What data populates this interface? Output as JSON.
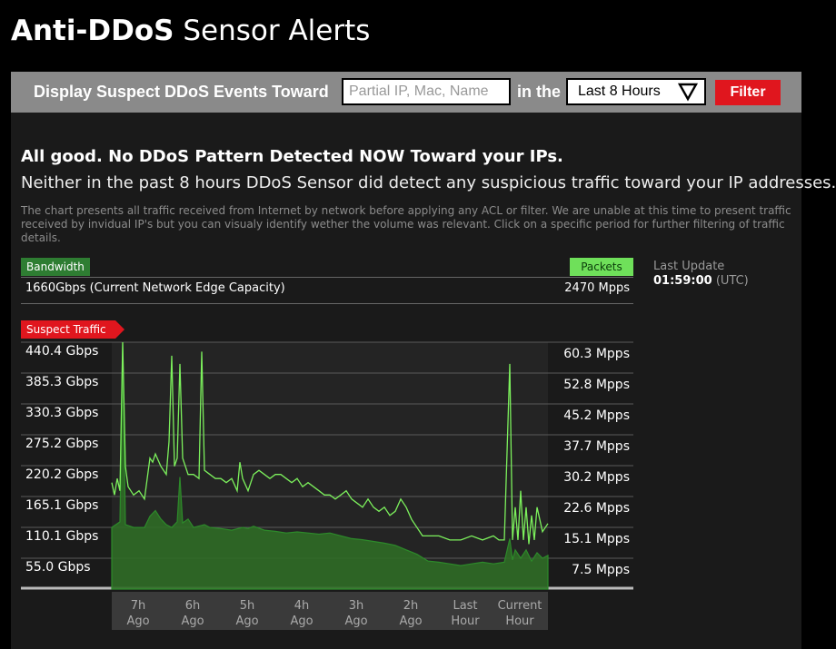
{
  "page": {
    "title_bold": "Anti-DDoS",
    "title_light": "Sensor Alerts"
  },
  "filter": {
    "label": "Display Suspect DDoS Events Toward",
    "input_placeholder": "Partial IP, Mac, Name",
    "input_value": "",
    "in_the": "in the",
    "period_selected": "Last 8 Hours",
    "button_label": "Filter"
  },
  "status": {
    "headline": "All good. No DDoS Pattern Detected NOW Toward your IPs.",
    "subline": "Neither in the past 8 hours DDoS Sensor did detect any suspicious traffic toward your IP addresses.",
    "description": "The chart presents all traffic received from Internet by network before applying any ACL or filter. We are unable at this time to present traffic received by invidual IP's but you can visualy identify wether the volume was relevant. Click on a specific period for further filtering of traffic details."
  },
  "capacity": {
    "bandwidth_label": "Bandwidth",
    "packets_label": "Packets",
    "bandwidth_value": "1660Gbps (Current Network Edge Capacity)",
    "packets_value": "2470 Mpps"
  },
  "last_update": {
    "label": "Last Update",
    "time": "01:59:00",
    "tz": "(UTC)"
  },
  "colors": {
    "packets_line": "#7cf05c",
    "bandwidth_area": "#2f6b26",
    "bandwidth_line": "#2d8a2a",
    "alert_red": "#e0161e",
    "filter_bar": "#8a8a8a"
  },
  "chart_data": {
    "type": "area",
    "suspect_label": "Suspect Traffic",
    "y_left_ticks": [
      "440.4 Gbps",
      "385.3 Gbps",
      "330.3 Gbps",
      "275.2 Gbps",
      "220.2 Gbps",
      "165.1 Gbps",
      "110.1 Gbps",
      "55.0 Gbps"
    ],
    "y_right_ticks": [
      "60.3 Mpps",
      "52.8 Mpps",
      "45.2 Mpps",
      "37.7 Mpps",
      "30.2 Mpps",
      "22.6 Mpps",
      "15.1 Mpps",
      "7.5 Mpps"
    ],
    "x_ticks": [
      {
        "line1": "7h",
        "line2": "Ago"
      },
      {
        "line1": "6h",
        "line2": "Ago"
      },
      {
        "line1": "5h",
        "line2": "Ago"
      },
      {
        "line1": "4h",
        "line2": "Ago"
      },
      {
        "line1": "3h",
        "line2": "Ago"
      },
      {
        "line1": "2h",
        "line2": "Ago"
      },
      {
        "line1": "Last",
        "line2": "Hour"
      },
      {
        "line1": "Current",
        "line2": "Hour"
      }
    ],
    "ylim_gbps": [
      0,
      440.4
    ],
    "ylim_mpps": [
      0,
      60.3
    ],
    "hours_ago_range": [
      8,
      0
    ],
    "series": [
      {
        "name": "Bandwidth",
        "unit": "Gbps",
        "points": [
          [
            8.0,
            110
          ],
          [
            7.85,
            120
          ],
          [
            7.8,
            440
          ],
          [
            7.75,
            115
          ],
          [
            7.6,
            110
          ],
          [
            7.4,
            110
          ],
          [
            7.3,
            130
          ],
          [
            7.2,
            140
          ],
          [
            7.1,
            125
          ],
          [
            7.0,
            115
          ],
          [
            6.9,
            110
          ],
          [
            6.8,
            120
          ],
          [
            6.75,
            200
          ],
          [
            6.7,
            118
          ],
          [
            6.6,
            125
          ],
          [
            6.5,
            110
          ],
          [
            6.3,
            115
          ],
          [
            6.2,
            110
          ],
          [
            6.0,
            108
          ],
          [
            5.8,
            105
          ],
          [
            5.6,
            110
          ],
          [
            5.5,
            108
          ],
          [
            5.4,
            112
          ],
          [
            5.2,
            105
          ],
          [
            5.0,
            103
          ],
          [
            4.8,
            100
          ],
          [
            4.6,
            102
          ],
          [
            4.4,
            100
          ],
          [
            4.2,
            98
          ],
          [
            4.0,
            100
          ],
          [
            3.8,
            95
          ],
          [
            3.6,
            90
          ],
          [
            3.4,
            88
          ],
          [
            3.2,
            85
          ],
          [
            3.0,
            82
          ],
          [
            2.8,
            78
          ],
          [
            2.6,
            70
          ],
          [
            2.4,
            62
          ],
          [
            2.2,
            50
          ],
          [
            2.0,
            48
          ],
          [
            1.8,
            45
          ],
          [
            1.6,
            42
          ],
          [
            1.4,
            45
          ],
          [
            1.2,
            48
          ],
          [
            1.0,
            45
          ],
          [
            0.8,
            48
          ],
          [
            0.7,
            90
          ],
          [
            0.65,
            52
          ],
          [
            0.6,
            70
          ],
          [
            0.5,
            55
          ],
          [
            0.4,
            70
          ],
          [
            0.3,
            50
          ],
          [
            0.2,
            65
          ],
          [
            0.1,
            55
          ],
          [
            0.0,
            60
          ]
        ]
      },
      {
        "name": "Packets",
        "unit": "Mpps",
        "points": [
          [
            8.0,
            26
          ],
          [
            7.95,
            23
          ],
          [
            7.9,
            27
          ],
          [
            7.85,
            24
          ],
          [
            7.8,
            60.3
          ],
          [
            7.75,
            30
          ],
          [
            7.7,
            25
          ],
          [
            7.6,
            23
          ],
          [
            7.5,
            24
          ],
          [
            7.4,
            22
          ],
          [
            7.3,
            32
          ],
          [
            7.25,
            31
          ],
          [
            7.2,
            33
          ],
          [
            7.1,
            30
          ],
          [
            7.0,
            28
          ],
          [
            6.95,
            36
          ],
          [
            6.9,
            57
          ],
          [
            6.85,
            30
          ],
          [
            6.8,
            32
          ],
          [
            6.75,
            55
          ],
          [
            6.7,
            32
          ],
          [
            6.6,
            28
          ],
          [
            6.5,
            28
          ],
          [
            6.4,
            27
          ],
          [
            6.35,
            58
          ],
          [
            6.3,
            29
          ],
          [
            6.2,
            28
          ],
          [
            6.1,
            27
          ],
          [
            6.0,
            27
          ],
          [
            5.9,
            26
          ],
          [
            5.8,
            27
          ],
          [
            5.7,
            24
          ],
          [
            5.65,
            31
          ],
          [
            5.6,
            27
          ],
          [
            5.5,
            24
          ],
          [
            5.4,
            28
          ],
          [
            5.3,
            29
          ],
          [
            5.2,
            28
          ],
          [
            5.1,
            27
          ],
          [
            5.0,
            28
          ],
          [
            4.9,
            28
          ],
          [
            4.8,
            27
          ],
          [
            4.7,
            26
          ],
          [
            4.6,
            27
          ],
          [
            4.5,
            25
          ],
          [
            4.4,
            26
          ],
          [
            4.3,
            25
          ],
          [
            4.2,
            24
          ],
          [
            4.1,
            23
          ],
          [
            4.0,
            23
          ],
          [
            3.9,
            22
          ],
          [
            3.8,
            23
          ],
          [
            3.7,
            24
          ],
          [
            3.6,
            22
          ],
          [
            3.5,
            21
          ],
          [
            3.4,
            20
          ],
          [
            3.3,
            22
          ],
          [
            3.2,
            20
          ],
          [
            3.1,
            19
          ],
          [
            3.0,
            20
          ],
          [
            2.9,
            18
          ],
          [
            2.8,
            19
          ],
          [
            2.7,
            22
          ],
          [
            2.6,
            20
          ],
          [
            2.5,
            17
          ],
          [
            2.4,
            15
          ],
          [
            2.3,
            13
          ],
          [
            2.2,
            13
          ],
          [
            2.0,
            13
          ],
          [
            1.8,
            12
          ],
          [
            1.6,
            12
          ],
          [
            1.4,
            13
          ],
          [
            1.2,
            12
          ],
          [
            1.0,
            13
          ],
          [
            0.9,
            12
          ],
          [
            0.8,
            12
          ],
          [
            0.7,
            55
          ],
          [
            0.65,
            12
          ],
          [
            0.6,
            20
          ],
          [
            0.55,
            12
          ],
          [
            0.5,
            24
          ],
          [
            0.45,
            12
          ],
          [
            0.4,
            20
          ],
          [
            0.35,
            11
          ],
          [
            0.3,
            18
          ],
          [
            0.25,
            12
          ],
          [
            0.2,
            20
          ],
          [
            0.1,
            14
          ],
          [
            0.0,
            16
          ]
        ]
      }
    ]
  }
}
